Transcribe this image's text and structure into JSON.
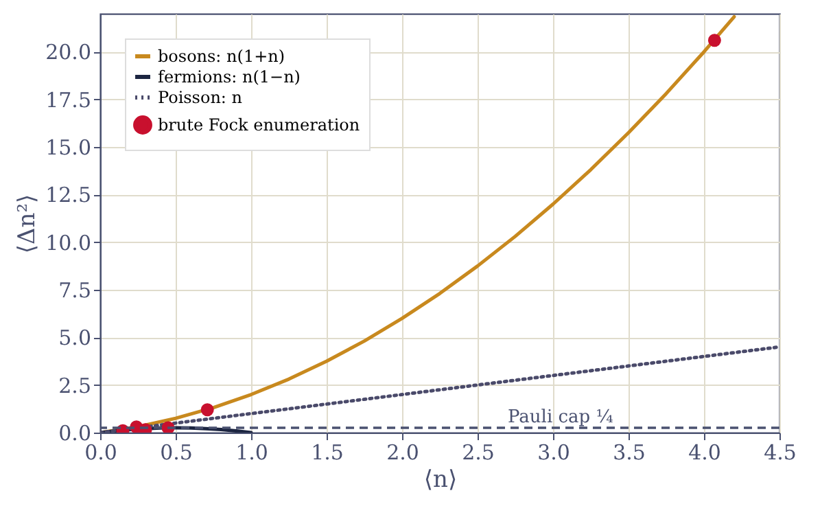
{
  "chart_data": {
    "type": "line",
    "xlabel": "⟨n⟩",
    "ylabel": "⟨Δn²⟩",
    "xlim": [
      0,
      4.5
    ],
    "ylim": [
      0,
      22
    ],
    "xticks": [
      {
        "value": 0,
        "label": "0.0"
      },
      {
        "value": 0.5,
        "label": "0.5"
      },
      {
        "value": 1,
        "label": "1.0"
      },
      {
        "value": 1.5,
        "label": "1.5"
      },
      {
        "value": 2,
        "label": "2.0"
      },
      {
        "value": 2.5,
        "label": "2.5"
      },
      {
        "value": 3,
        "label": "3.0"
      },
      {
        "value": 3.5,
        "label": "3.5"
      },
      {
        "value": 4,
        "label": "4.0"
      },
      {
        "value": 4.5,
        "label": "4.5"
      }
    ],
    "yticks": [
      {
        "value": 0,
        "label": "0.0"
      },
      {
        "value": 2.5,
        "label": "2.5"
      },
      {
        "value": 5,
        "label": "5.0"
      },
      {
        "value": 7.5,
        "label": "7.5"
      },
      {
        "value": 10,
        "label": "10.0"
      },
      {
        "value": 12.5,
        "label": "12.5"
      },
      {
        "value": 15,
        "label": "15.0"
      },
      {
        "value": 17.5,
        "label": "17.5"
      },
      {
        "value": 20,
        "label": "20.0"
      }
    ],
    "grid": true,
    "legend": "top left",
    "series": [
      {
        "name": "bosons: n(1+n)",
        "line_style": "solid",
        "color": "#c8891e",
        "x": [
          0,
          0.25,
          0.5,
          0.75,
          1,
          1.25,
          1.5,
          1.75,
          2,
          2.25,
          2.5,
          2.75,
          3,
          3.25,
          3.5,
          3.75,
          4,
          4.2
        ],
        "values": [
          0,
          0.31,
          0.75,
          1.31,
          2,
          2.81,
          3.75,
          4.81,
          6,
          7.31,
          8.75,
          10.31,
          12,
          13.81,
          15.75,
          17.81,
          20,
          21.84
        ]
      },
      {
        "name": "fermions: n(1−n)",
        "line_style": "solid",
        "color": "#1c2541",
        "x": [
          0,
          0.1,
          0.2,
          0.3,
          0.4,
          0.5,
          0.6,
          0.7,
          0.8,
          0.9,
          1
        ],
        "values": [
          0,
          0.09,
          0.16,
          0.21,
          0.24,
          0.25,
          0.24,
          0.21,
          0.16,
          0.09,
          0
        ]
      },
      {
        "name": "Poisson: n",
        "line_style": "dotted",
        "color": "#4a4a6a",
        "x": [
          0,
          4.5
        ],
        "values": [
          0,
          4.5
        ]
      },
      {
        "name": "brute Fock enumeration",
        "type": "scatter",
        "marker": "circle",
        "color": "#c8102e",
        "x": [
          0.15,
          0.24,
          0.3,
          0.45,
          0.71,
          4.07
        ],
        "values": [
          0.1,
          0.3,
          0.15,
          0.25,
          1.2,
          20.6
        ]
      }
    ],
    "ref_lines": [
      {
        "axis": "y",
        "value": 0.25,
        "label": "Pauli cap ¼",
        "color": "#4a5170",
        "line_style": "dashed"
      }
    ]
  }
}
